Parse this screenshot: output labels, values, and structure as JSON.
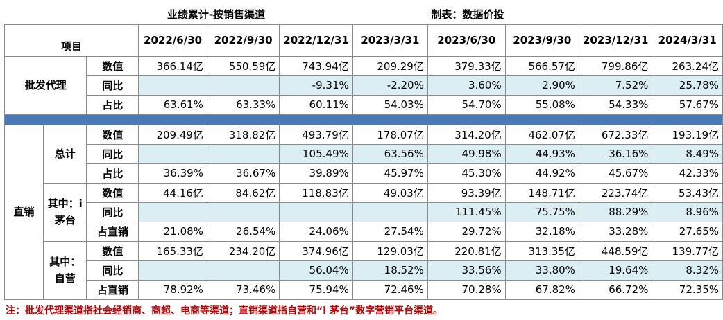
{
  "title": "业绩累计-按销售渠道",
  "credit": "制表：数据价投",
  "item_header": "项目",
  "dates": [
    "2022/6/30",
    "2022/9/30",
    "2022/12/31",
    "2023/3/31",
    "2023/6/30",
    "2023/9/30",
    "2023/12/31",
    "2024/3/31"
  ],
  "wholesale": {
    "label": "批发代理",
    "rows": [
      {
        "metric": "数值",
        "values": [
          "366.14亿",
          "550.59亿",
          "743.94亿",
          "209.29亿",
          "379.33亿",
          "566.57亿",
          "799.86亿",
          "263.24亿"
        ]
      },
      {
        "metric": "同比",
        "values": [
          "",
          "",
          "-9.31%",
          "-2.20%",
          "3.60%",
          "2.90%",
          "7.52%",
          "25.78%"
        ]
      },
      {
        "metric": "占比",
        "values": [
          "63.61%",
          "63.33%",
          "60.11%",
          "54.03%",
          "54.70%",
          "55.08%",
          "54.33%",
          "57.67%"
        ]
      }
    ]
  },
  "direct": {
    "label": "直销",
    "total": {
      "label": "总计",
      "rows": [
        {
          "metric": "数值",
          "values": [
            "209.49亿",
            "318.82亿",
            "493.79亿",
            "178.07亿",
            "314.20亿",
            "462.07亿",
            "672.33亿",
            "193.19亿"
          ]
        },
        {
          "metric": "同比",
          "values": [
            "",
            "",
            "105.49%",
            "63.56%",
            "49.98%",
            "44.93%",
            "36.16%",
            "8.49%"
          ]
        },
        {
          "metric": "占比",
          "values": [
            "36.39%",
            "36.67%",
            "39.89%",
            "45.97%",
            "45.30%",
            "44.92%",
            "45.67%",
            "42.33%"
          ]
        }
      ]
    },
    "imoutai": {
      "label": "其中：i茅台",
      "rows": [
        {
          "metric": "数值",
          "values": [
            "44.16亿",
            "84.62亿",
            "118.83亿",
            "49.03亿",
            "93.39亿",
            "148.71亿",
            "223.74亿",
            "53.43亿"
          ]
        },
        {
          "metric": "同比",
          "values": [
            "",
            "",
            "",
            "",
            "111.45%",
            "75.75%",
            "88.29%",
            "8.96%"
          ]
        },
        {
          "metric": "占直销",
          "values": [
            "21.08%",
            "26.54%",
            "24.06%",
            "27.54%",
            "29.72%",
            "32.18%",
            "33.28%",
            "27.65%"
          ]
        }
      ]
    },
    "self": {
      "label": "其中：自营",
      "rows": [
        {
          "metric": "数值",
          "values": [
            "165.33亿",
            "234.20亿",
            "374.96亿",
            "129.03亿",
            "220.81亿",
            "313.35亿",
            "448.59亿",
            "139.77亿"
          ]
        },
        {
          "metric": "同比",
          "values": [
            "",
            "",
            "56.04%",
            "18.52%",
            "33.56%",
            "33.80%",
            "19.64%",
            "8.32%"
          ]
        },
        {
          "metric": "占直销",
          "values": [
            "78.92%",
            "73.46%",
            "75.94%",
            "72.46%",
            "70.28%",
            "67.82%",
            "66.72%",
            "72.35%"
          ]
        }
      ]
    }
  },
  "note": "注：批发代理渠道指社会经销商、商超、电商等渠道；直销渠道指自营和“i 茅台”数字营销平台渠道。",
  "colors": {
    "title_red": "#c00000",
    "pct_row_fill": "#dbeef4",
    "separator_blue": "#4a79b8",
    "grid": "#8a8a8a"
  }
}
